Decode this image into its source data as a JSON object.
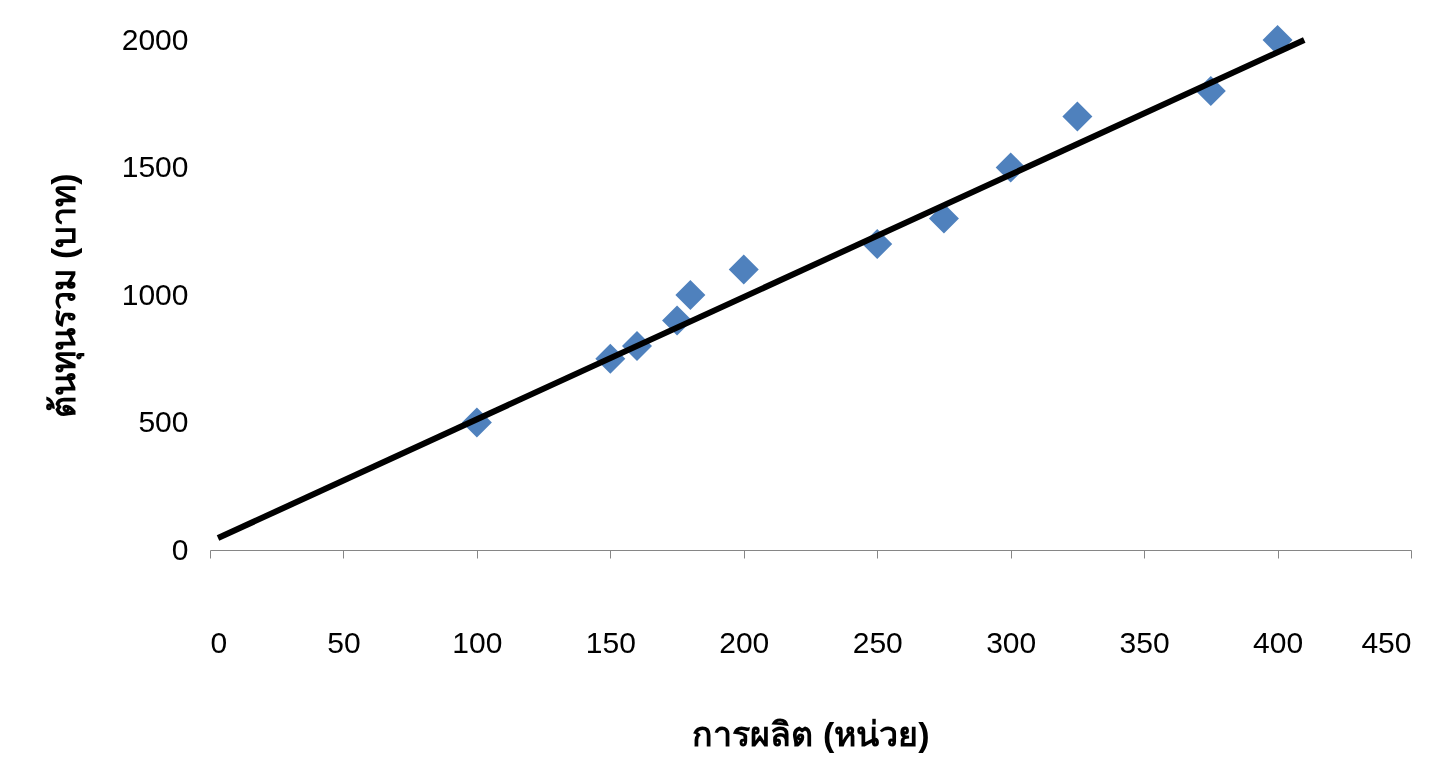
{
  "chart_data": {
    "type": "scatter",
    "xlabel": "การผลิต (หน่วย)",
    "ylabel": "ต้นทุนรวม (บาท)",
    "xlim": [
      0,
      450
    ],
    "ylim": [
      0,
      2000
    ],
    "xticks": [
      0,
      50,
      100,
      150,
      200,
      250,
      300,
      350,
      400,
      450
    ],
    "yticks": [
      0,
      500,
      1000,
      1500,
      2000
    ],
    "grid": false,
    "series": [
      {
        "color": "#4f81bd",
        "marker": "diamond",
        "x": [
          100,
          150,
          160,
          175,
          180,
          200,
          250,
          275,
          300,
          325,
          375,
          400
        ],
        "values": [
          500,
          750,
          800,
          900,
          1000,
          1100,
          1200,
          1300,
          1500,
          1700,
          1800,
          2000
        ]
      },
      {
        "type": "line",
        "color": "#000000",
        "marker": "none",
        "x": [
          3,
          410
        ],
        "values": [
          47,
          2000
        ]
      }
    ]
  }
}
